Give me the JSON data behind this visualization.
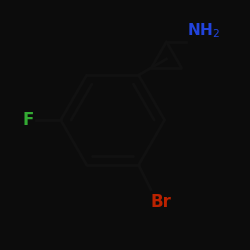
{
  "background_color": "#0a0a0a",
  "bond_color": "#111111",
  "bond_color2": "#1a1a1a",
  "line_color": "#0d0d0d",
  "F_color": "#33aa33",
  "Br_color": "#bb2200",
  "NH2_color": "#2244dd",
  "bond_width": 2.0,
  "figsize": [
    2.5,
    2.5
  ],
  "dpi": 100,
  "bg": "#0c0c0c"
}
